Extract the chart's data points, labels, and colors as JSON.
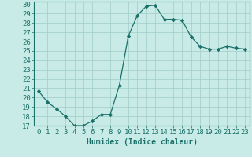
{
  "x": [
    0,
    1,
    2,
    3,
    4,
    5,
    6,
    7,
    8,
    9,
    10,
    11,
    12,
    13,
    14,
    15,
    16,
    17,
    18,
    19,
    20,
    21,
    22,
    23
  ],
  "y": [
    20.7,
    19.5,
    18.8,
    18.0,
    17.0,
    17.0,
    17.5,
    18.2,
    18.2,
    21.3,
    26.6,
    28.8,
    29.8,
    29.9,
    28.4,
    28.4,
    28.3,
    26.5,
    25.5,
    25.2,
    25.2,
    25.5,
    25.3,
    25.2
  ],
  "line_color": "#1a7068",
  "marker": "D",
  "marker_size": 2.2,
  "bg_color": "#c8ebe8",
  "grid_color": "#a0ccc8",
  "xlabel": "Humidex (Indice chaleur)",
  "xlim": [
    -0.5,
    23.5
  ],
  "ylim": [
    17,
    30.3
  ],
  "yticks": [
    17,
    18,
    19,
    20,
    21,
    22,
    23,
    24,
    25,
    26,
    27,
    28,
    29,
    30
  ],
  "xticks": [
    0,
    1,
    2,
    3,
    4,
    5,
    6,
    7,
    8,
    9,
    10,
    11,
    12,
    13,
    14,
    15,
    16,
    17,
    18,
    19,
    20,
    21,
    22,
    23
  ],
  "label_fontsize": 7,
  "tick_fontsize": 6.5
}
